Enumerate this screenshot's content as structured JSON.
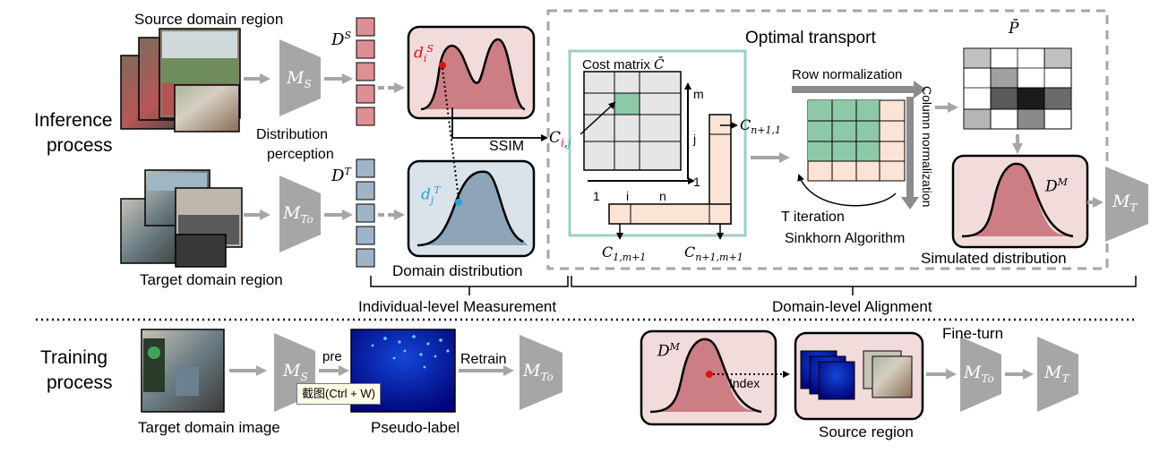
{
  "labels": {
    "source_domain_region": "Source domain region",
    "target_domain_region": "Target domain region",
    "inference_process": [
      "Inference",
      "process"
    ],
    "training_process": [
      "Training",
      "process"
    ],
    "distribution_perception": [
      "Distribution",
      "perception"
    ],
    "domain_distribution": "Domain distribution",
    "optimal_transport": "Optimal transport",
    "cost_matrix": "Cost matrix",
    "row_normalization": "Row normalization",
    "column_normalization": "Column normalization",
    "t_iteration": "T iteration",
    "sinkhorn": "Sinkhorn Algorithm",
    "simulated_distribution": "Simulated distribution",
    "ssim": "SSIM",
    "individual_level": "Individual-level Measurement",
    "domain_level": "Domain-level Alignment",
    "target_domain_image": "Target domain image",
    "pseudo_label": "Pseudo-label",
    "pre": "pre",
    "retrain": "Retrain",
    "fine_turn": "Fine-turn",
    "index": "Index",
    "source_region": "Source region",
    "axis_m": "m",
    "axis_j": "j",
    "axis_1a": "1",
    "axis_1b": "1",
    "axis_i": "i",
    "axis_n": "n"
  },
  "symbols": {
    "ms": "M",
    "ms_sub": "S",
    "mto": "M",
    "mto_sub": "To",
    "mt": "M",
    "mt_sub": "T",
    "ds": "D",
    "ds_sup": "S",
    "dt": "D",
    "dt_sup": "T",
    "dm": "D",
    "dm_sup": "M",
    "dis": "d",
    "dis_sub": "i",
    "dis_sup": "S",
    "djt": "d",
    "djt_sub": "j",
    "djt_sup": "T",
    "cij": "C",
    "cij_i": "i",
    "cij_comma": ",",
    "cij_j": "j",
    "cn1": "C",
    "cn1_sub": "n+1,1",
    "c1m": "C",
    "c1m_sub": "1,m+1",
    "cnm": "C",
    "cnm_sub": "n+1,m+1",
    "cbar": "C̄",
    "pbar": "P̄"
  },
  "tooltip": "截图(Ctrl + W)",
  "colors": {
    "model_gray": "#a6a6a6",
    "arrow_gray": "#a6a6a6",
    "source_feature": "#dd8f93",
    "target_feature": "#9fb4c7",
    "source_panel": "#f2dcdb",
    "target_panel": "#dbe3ea",
    "source_curve_fill": "#cd7d84",
    "target_curve_fill": "#8ea4b8",
    "cost_matrix_border": "#9ad1c4",
    "matrix_cell": "#e6e6e6",
    "highlight_cell": "#8dc9a8",
    "peach_cell": "#fbe4d5",
    "dashed_border": "#a6a6a6",
    "point_red": "#e01010",
    "point_blue": "#2f9fd8"
  }
}
